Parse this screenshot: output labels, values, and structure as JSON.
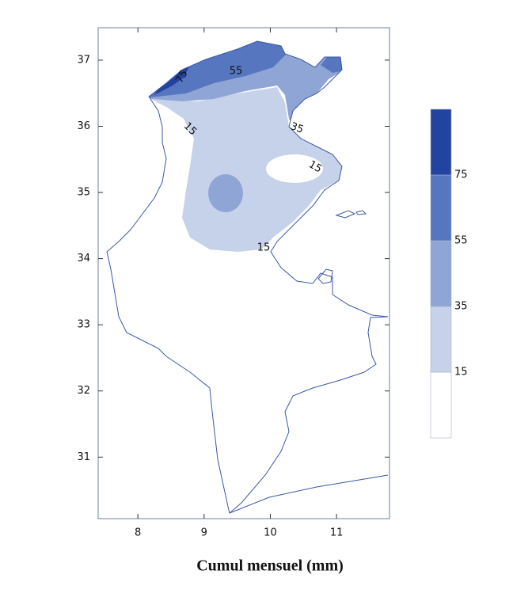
{
  "map": {
    "title": "Cumul mensuel (mm)",
    "xlim": [
      7.4,
      11.8
    ],
    "ylim": [
      30.07,
      37.49
    ],
    "xticks": [
      8,
      9,
      10,
      11
    ],
    "yticks": [
      31,
      32,
      33,
      34,
      35,
      36,
      37
    ],
    "contour_labels": [
      75,
      55,
      35,
      15,
      15,
      15
    ],
    "colorbar": {
      "colors": [
        "#ffffff",
        "#c6d1ea",
        "#8fa5d5",
        "#5676c0",
        "#2343a1"
      ],
      "lim": [
        -5,
        95
      ],
      "ticks": [
        15,
        35,
        55,
        75
      ]
    }
  }
}
